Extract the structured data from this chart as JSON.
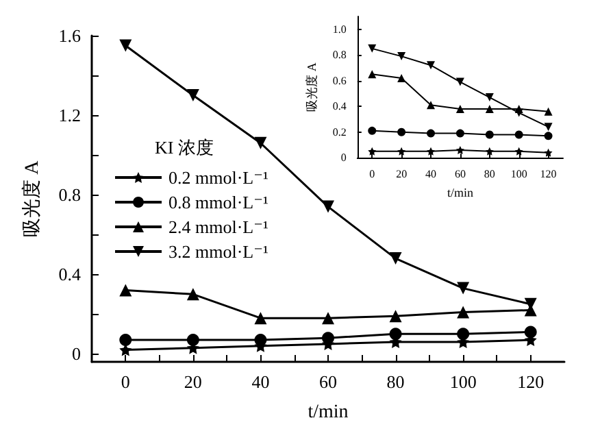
{
  "chart_data": [
    {
      "type": "line",
      "xlabel": "t/min",
      "ylabel": "吸光度 A",
      "legend_title": "KI 浓度",
      "legend": "left",
      "x": [
        0,
        20,
        40,
        60,
        80,
        100,
        120
      ],
      "xlim": [
        -10,
        130
      ],
      "xticks": [
        0,
        {
          "value": 10,
          "label": null
        },
        20,
        {
          "value": 30,
          "label": null
        },
        40,
        {
          "value": 50,
          "label": null
        },
        60,
        {
          "value": 70,
          "label": null
        },
        80,
        {
          "value": 90,
          "label": null
        },
        100,
        {
          "value": 110,
          "label": null
        },
        120
      ],
      "ylim": [
        -0.04,
        1.6
      ],
      "yticks": [
        0,
        {
          "value": 0.2,
          "label": null
        },
        0.4,
        {
          "value": 0.6,
          "label": null
        },
        0.8,
        {
          "value": 1.0,
          "label": null
        },
        1.2,
        {
          "value": 1.4,
          "label": null
        },
        1.6
      ],
      "grid": false,
      "series": [
        {
          "name": "0.2 mmol·L⁻¹",
          "color": "#000000",
          "marker": "star",
          "values": [
            0.02,
            0.03,
            0.04,
            0.05,
            0.06,
            0.06,
            0.07
          ]
        },
        {
          "name": "0.8 mmol·L⁻¹",
          "color": "#000000",
          "marker": "circle",
          "values": [
            0.07,
            0.07,
            0.07,
            0.08,
            0.1,
            0.1,
            0.11
          ]
        },
        {
          "name": "2.4 mmol·L⁻¹",
          "color": "#000000",
          "marker": "triangle",
          "values": [
            0.32,
            0.3,
            0.18,
            0.18,
            0.19,
            0.21,
            0.22
          ]
        },
        {
          "name": "3.2 mmol·L⁻¹",
          "color": "#000000",
          "marker": "triangle-down",
          "values": [
            1.55,
            1.3,
            1.06,
            0.74,
            0.48,
            0.33,
            0.25
          ]
        }
      ]
    },
    {
      "type": "line",
      "xlabel": "t/min",
      "ylabel": "吸光度 A",
      "legend": false,
      "x": [
        0,
        20,
        40,
        60,
        80,
        100,
        120
      ],
      "xlim": [
        -10,
        130
      ],
      "xticks": [
        0,
        20,
        40,
        60,
        80,
        100,
        120
      ],
      "ylim": [
        0,
        1.1
      ],
      "yticks": [
        0,
        0.2,
        0.4,
        0.6,
        0.8,
        {
          "value": 1.0,
          "label": "1.0"
        }
      ],
      "grid": false,
      "series": [
        {
          "color": "#000000",
          "marker": "star",
          "values": [
            0.05,
            0.05,
            0.05,
            0.06,
            0.05,
            0.05,
            0.04
          ]
        },
        {
          "color": "#000000",
          "marker": "circle",
          "values": [
            0.21,
            0.2,
            0.19,
            0.19,
            0.18,
            0.18,
            0.17
          ]
        },
        {
          "color": "#000000",
          "marker": "triangle",
          "values": [
            0.65,
            0.62,
            0.41,
            0.38,
            0.38,
            0.38,
            0.36
          ]
        },
        {
          "color": "#000000",
          "marker": "triangle-down",
          "values": [
            0.85,
            0.79,
            0.72,
            0.59,
            0.47,
            0.35,
            0.24
          ]
        }
      ]
    }
  ]
}
